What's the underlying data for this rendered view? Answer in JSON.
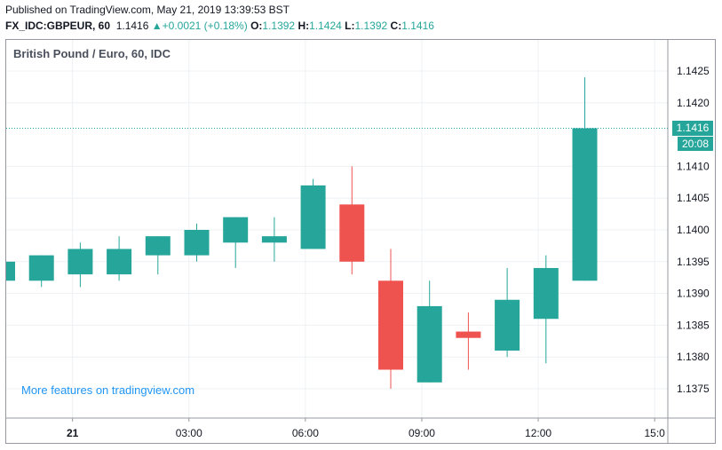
{
  "header": {
    "published": "Published on TradingView.com, May 21, 2019 13:39:53 BST",
    "symbol": "FX_IDC:GBPEUR, 60",
    "last": "1.1416",
    "change_arrow": "▲",
    "change": "+0.0021 (+0.18%)",
    "o_label": "O:",
    "o_value": "1.1392",
    "h_label": "H:",
    "h_value": "1.1424",
    "l_label": "L:",
    "l_value": "1.1392",
    "c_label": "C:",
    "c_value": "1.1416"
  },
  "legend": "British Pound / Euro, 60, IDC",
  "promo": "More features on tradingview.com",
  "price_tag": "1.1416",
  "countdown": "20:08",
  "colors": {
    "up": "#26a69a",
    "down": "#ef5350",
    "grid": "#eef0f3",
    "axis": "#9598a1"
  },
  "chart_data": {
    "type": "candlestick",
    "y_ticks": [
      "1.1375",
      "1.1380",
      "1.1385",
      "1.1390",
      "1.1395",
      "1.1400",
      "1.1405",
      "1.1410",
      "1.1416",
      "1.1420",
      "1.1425"
    ],
    "x_ticks": [
      {
        "label": "21",
        "index": 1.8,
        "bold": true
      },
      {
        "label": "03:00",
        "index": 4.8
      },
      {
        "label": "06:00",
        "index": 7.8
      },
      {
        "label": "09:00",
        "index": 10.8
      },
      {
        "label": "12:00",
        "index": 13.8
      },
      {
        "label": "15:0",
        "index": 16.8
      }
    ],
    "ylim": [
      1.137,
      1.143
    ],
    "last_price": 1.1416,
    "candles": [
      {
        "o": 1.1392,
        "h": 1.1395,
        "l": 1.1392,
        "c": 1.1395
      },
      {
        "o": 1.1392,
        "h": 1.1396,
        "l": 1.1391,
        "c": 1.1396
      },
      {
        "o": 1.1393,
        "h": 1.1398,
        "l": 1.1391,
        "c": 1.1397
      },
      {
        "o": 1.1393,
        "h": 1.1399,
        "l": 1.1392,
        "c": 1.1397
      },
      {
        "o": 1.1396,
        "h": 1.1399,
        "l": 1.1393,
        "c": 1.1399
      },
      {
        "o": 1.1396,
        "h": 1.1401,
        "l": 1.1395,
        "c": 1.14
      },
      {
        "o": 1.1398,
        "h": 1.1402,
        "l": 1.1394,
        "c": 1.1402
      },
      {
        "o": 1.1398,
        "h": 1.1402,
        "l": 1.1395,
        "c": 1.1399
      },
      {
        "o": 1.1397,
        "h": 1.1408,
        "l": 1.1397,
        "c": 1.1407
      },
      {
        "o": 1.1404,
        "h": 1.141,
        "l": 1.1393,
        "c": 1.1395
      },
      {
        "o": 1.1392,
        "h": 1.1397,
        "l": 1.1375,
        "c": 1.1378
      },
      {
        "o": 1.1376,
        "h": 1.1392,
        "l": 1.1376,
        "c": 1.1388
      },
      {
        "o": 1.1384,
        "h": 1.1387,
        "l": 1.1378,
        "c": 1.1383
      },
      {
        "o": 1.1381,
        "h": 1.1394,
        "l": 1.138,
        "c": 1.1389
      },
      {
        "o": 1.1386,
        "h": 1.1396,
        "l": 1.1379,
        "c": 1.1394
      },
      {
        "o": 1.1392,
        "h": 1.1424,
        "l": 1.1392,
        "c": 1.1416
      }
    ]
  }
}
